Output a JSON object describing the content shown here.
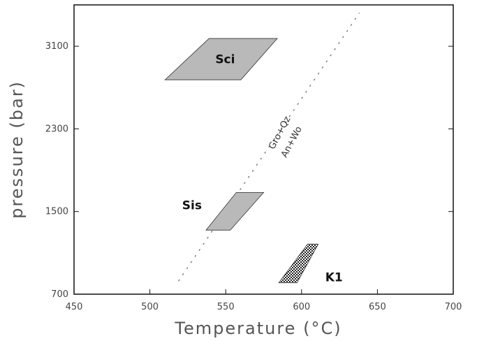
{
  "chart_data": {
    "type": "scatter",
    "xlabel": "Temperature (°C)",
    "ylabel": "pressure (bar)",
    "xlim": [
      450,
      700
    ],
    "ylim": [
      700,
      3500
    ],
    "xticks": [
      450,
      500,
      550,
      600,
      650,
      700
    ],
    "yticks": [
      700,
      1500,
      2300,
      3100
    ],
    "x_tick_labels": [
      "450",
      "500",
      "550",
      "600",
      "650",
      "700"
    ],
    "y_tick_labels": [
      "700",
      "1500",
      "2300",
      "3100"
    ],
    "grid": false,
    "regions": [
      {
        "label": "Sci",
        "fill": "gray",
        "polygon": [
          [
            539,
            3175
          ],
          [
            584,
            3175
          ],
          [
            560,
            2775
          ],
          [
            510,
            2775
          ]
        ]
      },
      {
        "label": "Sis",
        "fill": "gray",
        "polygon": [
          [
            557,
            1685
          ],
          [
            575,
            1685
          ],
          [
            553,
            1320
          ],
          [
            537,
            1320
          ]
        ]
      },
      {
        "label": "K1",
        "fill": "stipple",
        "polygon": [
          [
            604,
            1185
          ],
          [
            611,
            1185
          ],
          [
            597,
            810
          ],
          [
            585,
            810
          ]
        ]
      }
    ],
    "reaction_line": {
      "style": "dotted",
      "label_top": "Gro+Qz",
      "label_bottom": "An+Wo",
      "x": [
        519,
        638
      ],
      "y": [
        830,
        3420
      ]
    }
  },
  "colors": {
    "region_gray": "#b9b9b9",
    "stipple": "#222222",
    "frame": "#111111"
  }
}
